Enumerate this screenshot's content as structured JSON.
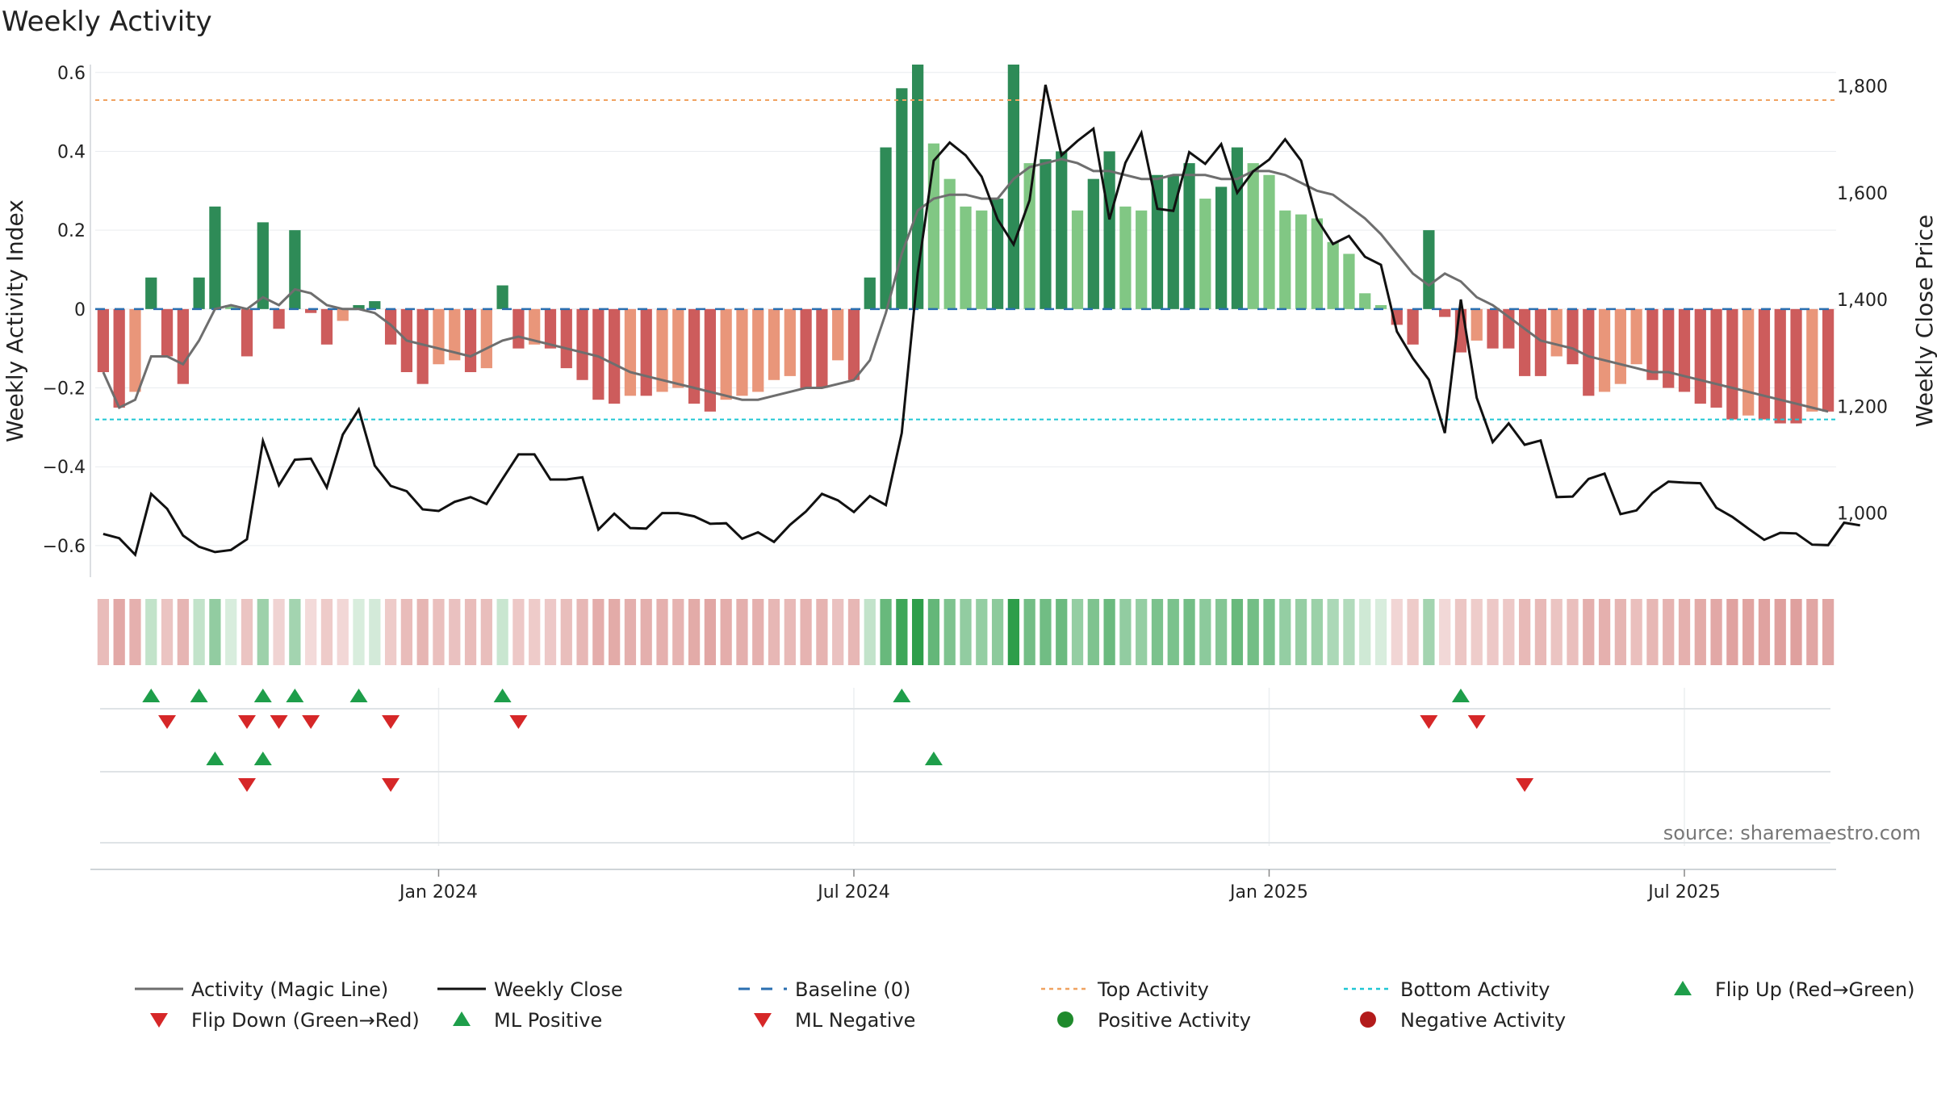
{
  "chart_data": {
    "type": "bar",
    "title": "Weekly Activity",
    "ylabel": "Weekly Activity Index",
    "y2label": "Weekly Close Price",
    "ylim": [
      -0.68,
      0.62
    ],
    "y2lim": [
      880,
      1840
    ],
    "yticks": [
      0.6,
      0.4,
      0.2,
      0,
      -0.2,
      -0.4,
      -0.6
    ],
    "ytick_labels": [
      "0.6",
      "0.4",
      "0.2",
      "0",
      "−0.2",
      "−0.4",
      "−0.6"
    ],
    "y2ticks": [
      1800,
      1600,
      1400,
      1200,
      1000
    ],
    "y2tick_labels": [
      "1,800",
      "1,600",
      "1,400",
      "1,200",
      "1,000"
    ],
    "x_tick_labels": [
      {
        "label": "Jan 2024",
        "week": 21
      },
      {
        "label": "Jul 2024",
        "week": 47
      },
      {
        "label": "Jan 2025",
        "week": 73
      },
      {
        "label": "Jul 2025",
        "week": 99
      }
    ],
    "top_activity": 0.53,
    "bottom_activity": -0.28,
    "baseline": 0,
    "activity": [
      -0.16,
      -0.25,
      -0.21,
      0.08,
      -0.12,
      -0.19,
      0.08,
      0.26,
      0.01,
      -0.12,
      0.22,
      -0.05,
      0.2,
      -0.01,
      -0.09,
      -0.03,
      0.01,
      0.02,
      -0.09,
      -0.16,
      -0.19,
      -0.14,
      -0.13,
      -0.16,
      -0.15,
      0.06,
      -0.1,
      -0.09,
      -0.1,
      -0.15,
      -0.18,
      -0.23,
      -0.24,
      -0.22,
      -0.22,
      -0.21,
      -0.2,
      -0.24,
      -0.26,
      -0.23,
      -0.22,
      -0.21,
      -0.18,
      -0.17,
      -0.2,
      -0.2,
      -0.13,
      -0.18,
      0.08,
      0.41,
      0.56,
      0.62,
      0.42,
      0.33,
      0.26,
      0.25,
      0.28,
      0.62,
      0.37,
      0.38,
      0.4,
      0.25,
      0.33,
      0.4,
      0.26,
      0.25,
      0.34,
      0.34,
      0.37,
      0.28,
      0.31,
      0.41,
      0.37,
      0.34,
      0.25,
      0.24,
      0.23,
      0.17,
      0.14,
      0.04,
      0.01,
      -0.04,
      -0.09,
      0.2,
      -0.02,
      -0.11,
      -0.08,
      -0.1,
      -0.1,
      -0.17,
      -0.17,
      -0.12,
      -0.14,
      -0.22,
      -0.21,
      -0.19,
      -0.14,
      -0.18,
      -0.2,
      -0.21,
      -0.24,
      -0.25,
      -0.28,
      -0.27,
      -0.28,
      -0.29,
      -0.29,
      -0.26,
      -0.26
    ],
    "magic_line": [
      -0.16,
      -0.25,
      -0.23,
      -0.12,
      -0.12,
      -0.14,
      -0.08,
      0.0,
      0.01,
      0.0,
      0.03,
      0.01,
      0.05,
      0.04,
      0.01,
      0.0,
      0.0,
      -0.01,
      -0.04,
      -0.08,
      -0.09,
      -0.1,
      -0.11,
      -0.12,
      -0.1,
      -0.08,
      -0.07,
      -0.08,
      -0.09,
      -0.1,
      -0.11,
      -0.12,
      -0.14,
      -0.16,
      -0.17,
      -0.18,
      -0.19,
      -0.2,
      -0.21,
      -0.22,
      -0.23,
      -0.23,
      -0.22,
      -0.21,
      -0.2,
      -0.2,
      -0.19,
      -0.18,
      -0.13,
      -0.01,
      0.14,
      0.25,
      0.28,
      0.29,
      0.29,
      0.28,
      0.28,
      0.33,
      0.36,
      0.37,
      0.38,
      0.37,
      0.35,
      0.35,
      0.34,
      0.33,
      0.33,
      0.34,
      0.34,
      0.34,
      0.33,
      0.33,
      0.35,
      0.35,
      0.34,
      0.32,
      0.3,
      0.29,
      0.26,
      0.23,
      0.19,
      0.14,
      0.09,
      0.06,
      0.09,
      0.07,
      0.03,
      0.01,
      -0.02,
      -0.05,
      -0.08,
      -0.09,
      -0.1,
      -0.12,
      -0.13,
      -0.14,
      -0.15,
      -0.16,
      -0.16,
      -0.17,
      -0.18,
      -0.19,
      -0.2,
      -0.21,
      -0.22,
      -0.23,
      -0.24,
      -0.25,
      -0.26
    ],
    "weekly_close": [
      961,
      953,
      922,
      1036,
      1008,
      958,
      937,
      927,
      931,
      951,
      1135,
      1052,
      1100,
      1102,
      1048,
      1147,
      1194,
      1089,
      1051,
      1041,
      1007,
      1004,
      1021,
      1030,
      1017,
      1064,
      1110,
      1110,
      1063,
      1063,
      1067,
      969,
      999,
      972,
      971,
      1000,
      1000,
      994,
      980,
      981,
      952,
      964,
      946,
      978,
      1003,
      1036,
      1024,
      1002,
      1032,
      1015,
      1150,
      1450,
      1660,
      1694,
      1670,
      1630,
      1550,
      1503,
      1586,
      1802,
      1670,
      1697,
      1720,
      1550,
      1656,
      1712,
      1570,
      1566,
      1676,
      1654,
      1691,
      1600,
      1640,
      1662,
      1700,
      1660,
      1550,
      1504,
      1519,
      1480,
      1465,
      1340,
      1290,
      1250,
      1150,
      1400,
      1216,
      1133,
      1168,
      1128,
      1136,
      1030,
      1031,
      1064,
      1074,
      998,
      1005,
      1038,
      1059,
      1057,
      1056,
      1010,
      993,
      971,
      950,
      963,
      962,
      941,
      940,
      982,
      977
    ],
    "flip_up_weeks": [
      3,
      6,
      10,
      12,
      16,
      25,
      50,
      85
    ],
    "flip_down_weeks": [
      4,
      9,
      11,
      13,
      18,
      26,
      83,
      86
    ],
    "ml_positive_weeks": [
      7,
      10,
      52
    ],
    "ml_negative_weeks": [
      9,
      18,
      89
    ],
    "legend": [
      {
        "label": "Activity (Magic Line)",
        "symbol": "line",
        "color": "#6e6e6e"
      },
      {
        "label": "Weekly Close",
        "symbol": "line",
        "color": "#111111"
      },
      {
        "label": "Baseline (0)",
        "symbol": "dash",
        "color": "#2a6fb0"
      },
      {
        "label": "Top Activity",
        "symbol": "dot",
        "color": "#f0a260"
      },
      {
        "label": "Bottom Activity",
        "symbol": "dot",
        "color": "#1fc6d4"
      },
      {
        "label": "Flip Up (Red→Green)",
        "symbol": "tri-up",
        "color": "#1e9e4a"
      },
      {
        "label": "Flip Down (Green→Red)",
        "symbol": "tri-down",
        "color": "#d62728"
      },
      {
        "label": "ML Positive",
        "symbol": "tri-up",
        "color": "#1e9e4a"
      },
      {
        "label": "ML Negative",
        "symbol": "tri-down",
        "color": "#d62728"
      },
      {
        "label": "Positive Activity",
        "symbol": "circle",
        "color": "#1f8a2c"
      },
      {
        "label": "Negative Activity",
        "symbol": "circle",
        "color": "#b31b1b"
      }
    ],
    "source": "source: sharemaestro.com"
  },
  "colors": {
    "pos_strong": "#2e8b57",
    "pos_light": "#81c784",
    "neg_strong": "#cd5c5c",
    "neg_light": "#e9967a",
    "heat_pos_dark": "#2e9e4a",
    "heat_neg": "#d98d8a"
  }
}
